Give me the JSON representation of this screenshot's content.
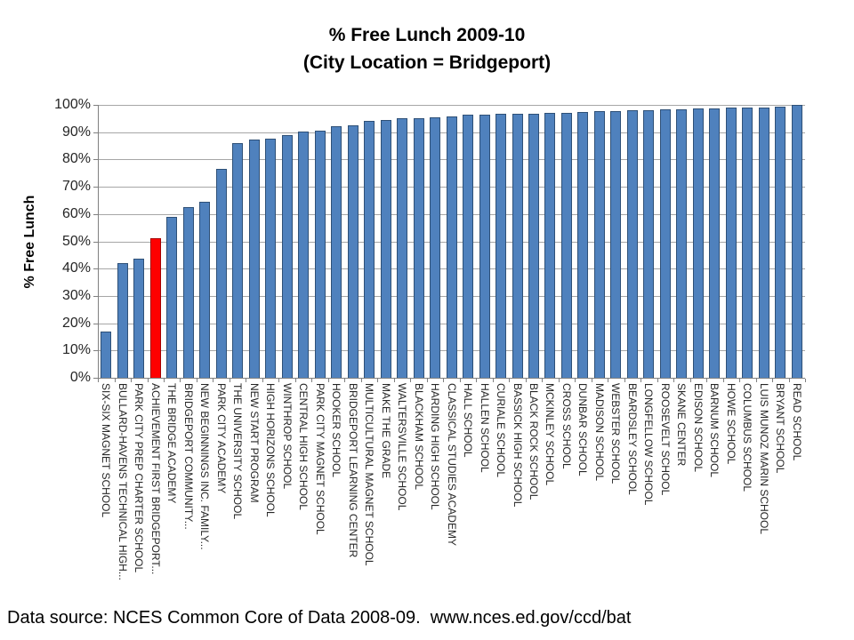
{
  "title": {
    "line1": "% Free Lunch 2009-10",
    "line2": "(City Location = Bridgeport)"
  },
  "footer": {
    "text": "Data source: NCES Common Core of Data 2008-09.  www.nces.ed.gov/ccd/bat"
  },
  "chart_data": {
    "type": "bar",
    "title": "% Free Lunch 2009-10 (City Location = Bridgeport)",
    "xlabel": "",
    "ylabel": "% Free Lunch",
    "ylim": [
      0,
      100
    ],
    "ytick_step": 10,
    "ytick_suffix": "%",
    "grid": true,
    "legend": "none",
    "categories": [
      "SIX-SIX MAGNET SCHOOL",
      "BULLARD-HAVENS TECHNICAL HIGH...",
      "PARK CITY PREP CHARTER SCHOOL",
      "ACHIEVEMENT FIRST BRIDGEPORT...",
      "THE BRIDGE ACADEMY",
      "BRIDGEPORT COMMUNITY...",
      "NEW BEGINNINGS INC. FAMILY...",
      "PARK CITY ACADEMY",
      "THE UNIVERSITY SCHOOL",
      "NEW START PROGRAM",
      "HIGH HORIZONS SCHOOL",
      "WINTHROP SCHOOL",
      "CENTRAL HIGH SCHOOL",
      "PARK CITY MAGNET SCHOOL",
      "HOOKER SCHOOL",
      "BRIDGEPORT LEARNING CENTER",
      "MULTICULTURAL MAGNET SCHOOL",
      "MAKE THE GRADE",
      "WALTERSVILLE SCHOOL",
      "BLACKHAM SCHOOL",
      "HARDING HIGH SCHOOL",
      "CLASSICAL STUDIES ACADEMY",
      "HALL SCHOOL",
      "HALLEN SCHOOL",
      "CURIALE SCHOOL",
      "BASSICK HIGH SCHOOL",
      "BLACK ROCK SCHOOL",
      "MCKINLEY SCHOOL",
      "CROSS SCHOOL",
      "DUNBAR SCHOOL",
      "MADISON SCHOOL",
      "WEBSTER SCHOOL",
      "BEARDSLEY SCHOOL",
      "LONGFELLOW SCHOOL",
      "ROOSEVELT SCHOOL",
      "SKANE CENTER",
      "EDISON SCHOOL",
      "BARNUM SCHOOL",
      "HOWE SCHOOL",
      "COLUMBUS SCHOOL",
      "LUIS MUNOZ MARIN SCHOOL",
      "BRYANT SCHOOL",
      "READ SCHOOL"
    ],
    "values": [
      17,
      42,
      43.5,
      51,
      59,
      62.5,
      64.5,
      76.5,
      86,
      87.2,
      87.5,
      89,
      90.2,
      90.5,
      92.3,
      92.5,
      94.1,
      94.6,
      95,
      95.2,
      95.3,
      95.7,
      96.3,
      96.4,
      96.6,
      96.7,
      96.9,
      97,
      97.2,
      97.3,
      97.6,
      97.7,
      98,
      98.1,
      98.3,
      98.5,
      98.7,
      98.8,
      98.9,
      99,
      99.1,
      99.5,
      100
    ],
    "highlight_index": 3,
    "colors": {
      "bar_fill": "#4F81BD",
      "bar_border": "#2E5077",
      "highlight_fill": "#FE0000",
      "highlight_border": "#A50000",
      "gridline": "#A6A6A6",
      "axis": "#808080",
      "tick_label": "#262626"
    }
  }
}
